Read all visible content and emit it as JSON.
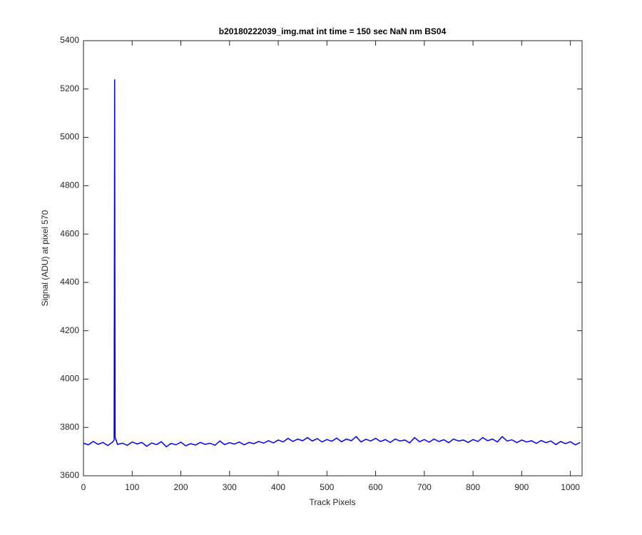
{
  "chart_data": {
    "type": "line",
    "title": "b20180222039_img.mat int time = 150 sec  NaN nm BS04",
    "xlabel": "Track Pixels",
    "ylabel": "Signal (ADU) at pixel 570",
    "x": [
      0,
      10,
      20,
      30,
      40,
      50,
      60,
      63,
      64,
      65,
      70,
      80,
      90,
      100,
      110,
      120,
      130,
      140,
      150,
      160,
      170,
      180,
      190,
      200,
      210,
      220,
      230,
      240,
      250,
      260,
      270,
      280,
      290,
      300,
      310,
      320,
      330,
      340,
      350,
      360,
      370,
      380,
      390,
      400,
      410,
      420,
      430,
      440,
      450,
      460,
      470,
      480,
      490,
      500,
      510,
      520,
      530,
      540,
      550,
      560,
      570,
      580,
      590,
      600,
      610,
      620,
      630,
      640,
      650,
      660,
      670,
      680,
      690,
      700,
      710,
      720,
      730,
      740,
      750,
      760,
      770,
      780,
      790,
      800,
      810,
      820,
      830,
      840,
      850,
      860,
      870,
      880,
      890,
      900,
      910,
      920,
      930,
      940,
      950,
      960,
      970,
      980,
      990,
      1000,
      1010,
      1020
    ],
    "series": [
      {
        "color": "#0000ff",
        "values": [
          3735,
          3728,
          3742,
          3730,
          3738,
          3725,
          3740,
          3748,
          5240,
          3760,
          3730,
          3735,
          3726,
          3740,
          3732,
          3738,
          3722,
          3736,
          3729,
          3741,
          3720,
          3734,
          3728,
          3739,
          3724,
          3733,
          3727,
          3738,
          3730,
          3735,
          3726,
          3744,
          3729,
          3737,
          3731,
          3740,
          3728,
          3738,
          3733,
          3742,
          3735,
          3745,
          3736,
          3748,
          3740,
          3755,
          3742,
          3752,
          3745,
          3758,
          3744,
          3754,
          3740,
          3750,
          3743,
          3756,
          3741,
          3752,
          3745,
          3762,
          3740,
          3751,
          3744,
          3755,
          3742,
          3750,
          3738,
          3752,
          3744,
          3748,
          3736,
          3758,
          3741,
          3750,
          3739,
          3752,
          3742,
          3749,
          3737,
          3752,
          3744,
          3748,
          3738,
          3750,
          3742,
          3758,
          3745,
          3752,
          3740,
          3762,
          3744,
          3749,
          3737,
          3748,
          3740,
          3745,
          3734,
          3746,
          3737,
          3744,
          3729,
          3742,
          3733,
          3741,
          3728,
          3738
        ]
      }
    ],
    "xlim": [
      0,
      1024
    ],
    "ylim": [
      3600,
      5400
    ],
    "xticks": [
      0,
      100,
      200,
      300,
      400,
      500,
      600,
      700,
      800,
      900,
      1000
    ],
    "yticks": [
      3600,
      3800,
      4000,
      4200,
      4400,
      4600,
      4800,
      5000,
      5200,
      5400
    ]
  }
}
